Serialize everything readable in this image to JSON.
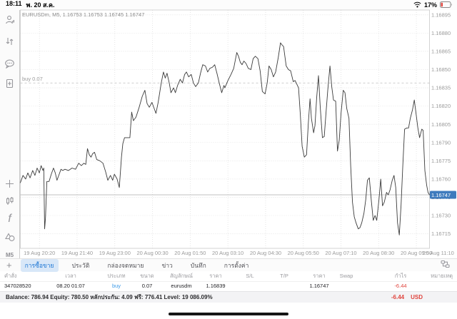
{
  "status_bar": {
    "time": "18:11",
    "date": "พ. 20 ส.ค.",
    "battery_percent": "17%"
  },
  "sidebar": {
    "icons": [
      "accounts",
      "trade",
      "chat",
      "new-order",
      "crosshair",
      "candles",
      "indicators",
      "objects"
    ],
    "timeframe_label": "M5"
  },
  "chart": {
    "ohlc_header": "EURUSDm, M5, 1.16753 1.16753 1.16745 1.16747"
  },
  "chart_data": {
    "type": "line",
    "symbol": "EURUSDm",
    "timeframe": "M5",
    "ylim": [
      1.16703,
      1.16899
    ],
    "y_ticks": [
      1.16895,
      1.1688,
      1.16865,
      1.1685,
      1.16835,
      1.1682,
      1.16805,
      1.1679,
      1.16775,
      1.1676,
      1.16745,
      1.1673,
      1.16715
    ],
    "x_ticks": [
      {
        "f": 0.0466,
        "label": "19 Aug 20:20"
      },
      {
        "f": 0.1387,
        "label": "19 Aug 21:40"
      },
      {
        "f": 0.2309,
        "label": "19 Aug 23:00"
      },
      {
        "f": 0.323,
        "label": "20 Aug 00:30"
      },
      {
        "f": 0.4151,
        "label": "20 Aug 01:50"
      },
      {
        "f": 0.5072,
        "label": "20 Aug 03:10"
      },
      {
        "f": 0.5994,
        "label": "20 Aug 04:30"
      },
      {
        "f": 0.6915,
        "label": "20 Aug 05:50"
      },
      {
        "f": 0.7836,
        "label": "20 Aug 07:10"
      },
      {
        "f": 0.8756,
        "label": "20 Aug 08:30"
      },
      {
        "f": 0.9678,
        "label": "20 Aug 09:50"
      },
      {
        "f": 1.0599,
        "label": "20 Aug 11:10"
      }
    ],
    "buy_line": {
      "price": 1.16839,
      "label": "buy 0.07"
    },
    "current_price": 1.16747,
    "points": [
      [
        0,
        1.16757
      ],
      [
        0.0065,
        1.16763
      ],
      [
        0.013,
        1.1676
      ],
      [
        0.0184,
        1.16765
      ],
      [
        0.0237,
        1.16761
      ],
      [
        0.0302,
        1.16767
      ],
      [
        0.0356,
        1.16763
      ],
      [
        0.041,
        1.16769
      ],
      [
        0.0464,
        1.16765
      ],
      [
        0.0507,
        1.16771
      ],
      [
        0.0551,
        1.16767
      ],
      [
        0.0572,
        1.16769
      ],
      [
        0.0594,
        1.16719
      ],
      [
        0.0615,
        1.16728
      ],
      [
        0.0648,
        1.16758
      ],
      [
        0.0702,
        1.16758
      ],
      [
        0.0756,
        1.16764
      ],
      [
        0.081,
        1.16769
      ],
      [
        0.0853,
        1.16765
      ],
      [
        0.0896,
        1.16759
      ],
      [
        0.095,
        1.16764
      ],
      [
        0.0993,
        1.16768
      ],
      [
        0.1036,
        1.16767
      ],
      [
        0.109,
        1.16768
      ],
      [
        0.1177,
        1.16767
      ],
      [
        0.1263,
        1.16769
      ],
      [
        0.1349,
        1.16768
      ],
      [
        0.1425,
        1.16773
      ],
      [
        0.149,
        1.16771
      ],
      [
        0.1554,
        1.16773
      ],
      [
        0.1598,
        1.16772
      ],
      [
        0.1641,
        1.16785
      ],
      [
        0.1684,
        1.1678
      ],
      [
        0.1727,
        1.16778
      ],
      [
        0.177,
        1.16781
      ],
      [
        0.1814,
        1.16782
      ],
      [
        0.1867,
        1.16776
      ],
      [
        0.1943,
        1.16775
      ],
      [
        0.2019,
        1.16773
      ],
      [
        0.2083,
        1.16766
      ],
      [
        0.2137,
        1.16759
      ],
      [
        0.2202,
        1.16763
      ],
      [
        0.2256,
        1.16759
      ],
      [
        0.2299,
        1.16764
      ],
      [
        0.2364,
        1.1676
      ],
      [
        0.2418,
        1.16753
      ],
      [
        0.2472,
        1.16778
      ],
      [
        0.2504,
        1.16789
      ],
      [
        0.2547,
        1.16794
      ],
      [
        0.2623,
        1.16794
      ],
      [
        0.2677,
        1.16794
      ],
      [
        0.272,
        1.16815
      ],
      [
        0.2763,
        1.16808
      ],
      [
        0.2828,
        1.16811
      ],
      [
        0.2904,
        1.16819
      ],
      [
        0.2979,
        1.16828
      ],
      [
        0.3044,
        1.16833
      ],
      [
        0.3098,
        1.16822
      ],
      [
        0.3152,
        1.16819
      ],
      [
        0.3217,
        1.16823
      ],
      [
        0.3271,
        1.16818
      ],
      [
        0.3314,
        1.16814
      ],
      [
        0.3368,
        1.16823
      ],
      [
        0.3443,
        1.16839
      ],
      [
        0.3497,
        1.16848
      ],
      [
        0.3541,
        1.16843
      ],
      [
        0.3584,
        1.16847
      ],
      [
        0.3638,
        1.16839
      ],
      [
        0.3681,
        1.16831
      ],
      [
        0.3746,
        1.16835
      ],
      [
        0.3789,
        1.16831
      ],
      [
        0.3843,
        1.16837
      ],
      [
        0.3908,
        1.16842
      ],
      [
        0.3962,
        1.16839
      ],
      [
        0.4016,
        1.16846
      ],
      [
        0.4059,
        1.16848
      ],
      [
        0.4113,
        1.16844
      ],
      [
        0.4177,
        1.16846
      ],
      [
        0.4231,
        1.16839
      ],
      [
        0.4285,
        1.16836
      ],
      [
        0.435,
        1.16839
      ],
      [
        0.4404,
        1.16847
      ],
      [
        0.4458,
        1.16854
      ],
      [
        0.4523,
        1.16853
      ],
      [
        0.4577,
        1.16848
      ],
      [
        0.4631,
        1.16851
      ],
      [
        0.4696,
        1.16852
      ],
      [
        0.475,
        1.16854
      ],
      [
        0.4804,
        1.16847
      ],
      [
        0.4868,
        1.16838
      ],
      [
        0.4922,
        1.16831
      ],
      [
        0.4976,
        1.16837
      ],
      [
        0.4998,
        1.16835
      ],
      [
        0.5073,
        1.16841
      ],
      [
        0.5149,
        1.16846
      ],
      [
        0.5214,
        1.16851
      ],
      [
        0.5289,
        1.16864
      ],
      [
        0.5332,
        1.16861
      ],
      [
        0.5376,
        1.16856
      ],
      [
        0.5419,
        1.16854
      ],
      [
        0.5462,
        1.16857
      ],
      [
        0.5516,
        1.16855
      ],
      [
        0.557,
        1.16851
      ],
      [
        0.5635,
        1.1685
      ],
      [
        0.5689,
        1.16859
      ],
      [
        0.5743,
        1.16861
      ],
      [
        0.5807,
        1.16859
      ],
      [
        0.5861,
        1.16849
      ],
      [
        0.5915,
        1.16832
      ],
      [
        0.598,
        1.1683
      ],
      [
        0.6034,
        1.16839
      ],
      [
        0.6077,
        1.16853
      ],
      [
        0.6131,
        1.1685
      ],
      [
        0.6185,
        1.16844
      ],
      [
        0.6239,
        1.16848
      ],
      [
        0.6304,
        1.1686
      ],
      [
        0.6358,
        1.16872
      ],
      [
        0.6401,
        1.1687
      ],
      [
        0.6433,
        1.16869
      ],
      [
        0.6498,
        1.16853
      ],
      [
        0.6552,
        1.1685
      ],
      [
        0.6606,
        1.16849
      ],
      [
        0.6671,
        1.1684
      ],
      [
        0.6714,
        1.16841
      ],
      [
        0.6757,
        1.16838
      ],
      [
        0.68,
        1.16835
      ],
      [
        0.6843,
        1.16813
      ],
      [
        0.6887,
        1.16787
      ],
      [
        0.6941,
        1.16778
      ],
      [
        0.6995,
        1.1678
      ],
      [
        0.7038,
        1.16806
      ],
      [
        0.7081,
        1.16826
      ],
      [
        0.7113,
        1.1681
      ],
      [
        0.7167,
        1.16798
      ],
      [
        0.72,
        1.16804
      ],
      [
        0.7243,
        1.16827
      ],
      [
        0.7286,
        1.16845
      ],
      [
        0.7329,
        1.16819
      ],
      [
        0.7383,
        1.16794
      ],
      [
        0.7427,
        1.16795
      ],
      [
        0.747,
        1.16814
      ],
      [
        0.7513,
        1.16833
      ],
      [
        0.7567,
        1.16853
      ],
      [
        0.761,
        1.16836
      ],
      [
        0.7653,
        1.16825
      ],
      [
        0.7707,
        1.16824
      ],
      [
        0.775,
        1.16783
      ],
      [
        0.7794,
        1.16792
      ],
      [
        0.7837,
        1.16814
      ],
      [
        0.7891,
        1.16833
      ],
      [
        0.7934,
        1.16831
      ],
      [
        0.7977,
        1.16818
      ],
      [
        0.8031,
        1.1681
      ],
      [
        0.8074,
        1.16771
      ],
      [
        0.8117,
        1.16741
      ],
      [
        0.8161,
        1.16729
      ],
      [
        0.8204,
        1.16724
      ],
      [
        0.8258,
        1.16719
      ],
      [
        0.8301,
        1.1672
      ],
      [
        0.8344,
        1.16724
      ],
      [
        0.8398,
        1.16732
      ],
      [
        0.8441,
        1.16743
      ],
      [
        0.8484,
        1.16759
      ],
      [
        0.8528,
        1.16761
      ],
      [
        0.8582,
        1.16741
      ],
      [
        0.8625,
        1.16726
      ],
      [
        0.8668,
        1.1673
      ],
      [
        0.8711,
        1.16726
      ],
      [
        0.8765,
        1.16743
      ],
      [
        0.8808,
        1.1676
      ],
      [
        0.8851,
        1.16738
      ],
      [
        0.8895,
        1.16741
      ],
      [
        0.8949,
        1.16749
      ],
      [
        0.8992,
        1.16747
      ],
      [
        0.9035,
        1.16751
      ],
      [
        0.9089,
        1.16759
      ],
      [
        0.9132,
        1.16763
      ],
      [
        0.9175,
        1.16753
      ],
      [
        0.9218,
        1.16724
      ],
      [
        0.9262,
        1.16714
      ],
      [
        0.9305,
        1.16739
      ],
      [
        0.9348,
        1.16771
      ],
      [
        0.9391,
        1.16801
      ],
      [
        0.9445,
        1.16802
      ],
      [
        0.9488,
        1.16802
      ],
      [
        0.9531,
        1.1681
      ],
      [
        0.9585,
        1.16817
      ],
      [
        0.9628,
        1.16825
      ],
      [
        0.9671,
        1.16814
      ],
      [
        0.9715,
        1.16802
      ],
      [
        0.9758,
        1.16794
      ],
      [
        0.9812,
        1.16801
      ],
      [
        0.9844,
        1.168
      ],
      [
        0.9887,
        1.16767
      ],
      [
        0.9931,
        1.16755
      ],
      [
        0.9963,
        1.16749
      ],
      [
        1,
        1.16747
      ]
    ]
  },
  "tabs": {
    "add_button": "+",
    "items": [
      "การซื้อขาย",
      "ประวัติ",
      "กล่องจดหมาย",
      "ข่าว",
      "บันทึก",
      "การตั้งค่า"
    ],
    "selected_index": 0
  },
  "trade_table": {
    "columns": [
      "คำสั่ง",
      "เวลา",
      "ประเภท",
      "ขนาด",
      "สัญลักษณ์",
      "ราคา",
      "S/L",
      "T/P",
      "ราคา",
      "Swap",
      "กำไร",
      "หมายเหตุ"
    ],
    "row": [
      "347028520",
      "08.20 01:07",
      "buy",
      "0.07",
      "eurusdm",
      "1.16839",
      "",
      "",
      "1.16747",
      "",
      "-6.44",
      ""
    ]
  },
  "balance_bar": {
    "summary": "Balance: 786.94 Equity: 780.50 หลักประกัน: 4.09 ฟรี: 776.41 Level: 19 086.09%",
    "profit": "-6.44",
    "currency": "USD"
  },
  "colors": {
    "accent_blue": "#2279d5",
    "buy_blue": "#3c9ae8",
    "loss_red": "#e0443d",
    "price_tag_blue": "#3e7bbd"
  }
}
